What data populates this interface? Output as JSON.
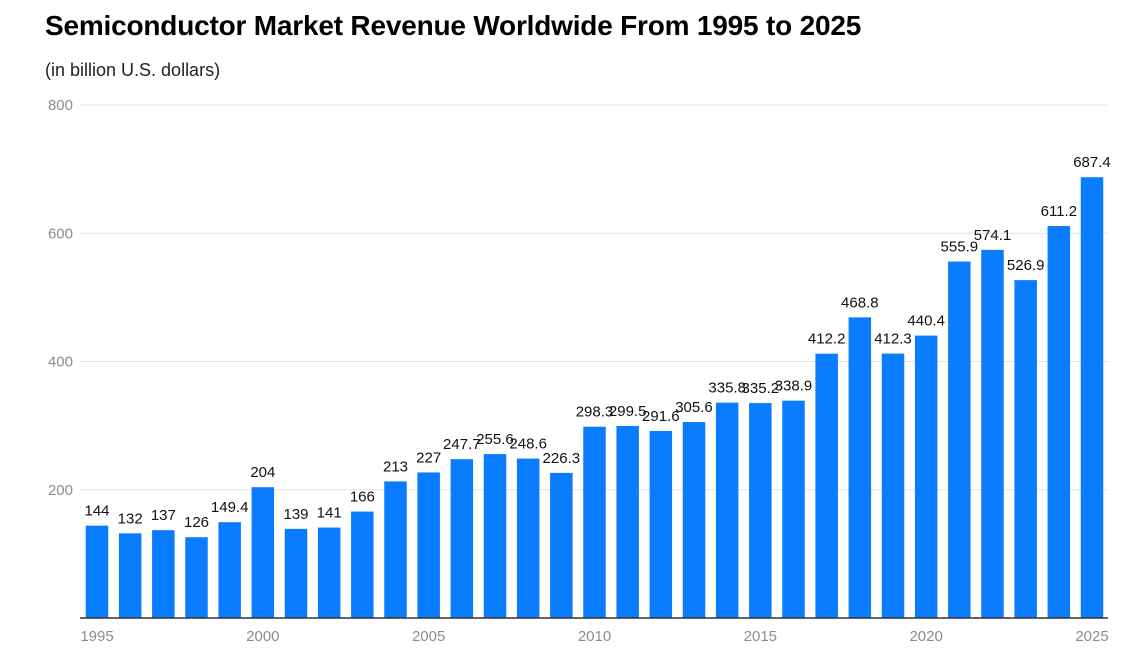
{
  "chart_data": {
    "type": "bar",
    "title": "Semiconductor Market Revenue Worldwide From 1995 to 2025",
    "subtitle": "(in billion U.S. dollars)",
    "xlabel": "",
    "ylabel": "",
    "categories": [
      1995,
      1996,
      1997,
      1998,
      1999,
      2000,
      2001,
      2002,
      2003,
      2004,
      2005,
      2006,
      2007,
      2008,
      2009,
      2010,
      2011,
      2012,
      2013,
      2014,
      2015,
      2016,
      2017,
      2018,
      2019,
      2020,
      2021,
      2022,
      2023,
      2024,
      2025
    ],
    "values": [
      144,
      132,
      137,
      126,
      149.4,
      204,
      139,
      141,
      166,
      213,
      227,
      247.7,
      255.6,
      248.6,
      226.3,
      298.3,
      299.5,
      291.6,
      305.6,
      335.8,
      335.2,
      338.9,
      412.2,
      468.8,
      412.3,
      440.4,
      555.9,
      574.1,
      526.9,
      611.2,
      687.4
    ],
    "value_labels": [
      "144",
      "132",
      "137",
      "126",
      "149.4",
      "204",
      "139",
      "141",
      "166",
      "213",
      "227",
      "247.7",
      "255.6",
      "248.6",
      "226.3",
      "298.3",
      "299.5",
      "291.6",
      "305.6",
      "335.8",
      "335.2",
      "338.9",
      "412.2",
      "468.8",
      "412.3",
      "440.4",
      "555.9",
      "574.1",
      "526.9",
      "611.2",
      "687.4"
    ],
    "ylim": [
      0,
      800
    ],
    "yticks": [
      200,
      400,
      600,
      800
    ],
    "ytick_labels": [
      "200",
      "400",
      "600",
      "800"
    ],
    "xtick_labels": [
      "1995",
      "2000",
      "2005",
      "2010",
      "2015",
      "2020",
      "2025"
    ],
    "xtick_values": [
      1995,
      2000,
      2005,
      2010,
      2015,
      2020,
      2025
    ],
    "grid": true,
    "legend": "none",
    "bar_color": "#0a7cff"
  }
}
